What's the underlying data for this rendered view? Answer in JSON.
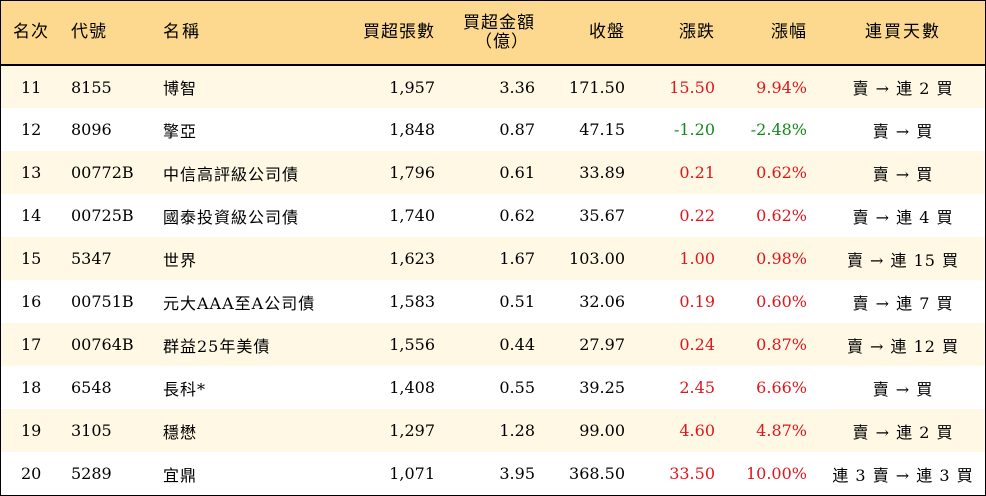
{
  "columns": {
    "rank": "名次",
    "code": "代號",
    "name": "名稱",
    "net_buy_lots": "買超張數",
    "net_buy_amount": "買超金額",
    "net_buy_amount_unit": "（億）",
    "close": "收盤",
    "change": "漲跌",
    "change_pct": "漲幅",
    "consecutive_days": "連買天數"
  },
  "colors": {
    "header_bg": "#fcd98e",
    "odd_row_bg": "#fef8e4",
    "up": "#e0161d",
    "down": "#138a1a"
  },
  "rows": [
    {
      "rank": "11",
      "code": "8155",
      "name": "博智",
      "net_buy_lots": "1,957",
      "net_buy_amount": "3.36",
      "close": "171.50",
      "change": "15.50",
      "change_pct": "9.94%",
      "direction": "up",
      "days": "賣 → 連 2 買"
    },
    {
      "rank": "12",
      "code": "8096",
      "name": "擎亞",
      "net_buy_lots": "1,848",
      "net_buy_amount": "0.87",
      "close": "47.15",
      "change": "-1.20",
      "change_pct": "-2.48%",
      "direction": "down",
      "days": "賣 → 買"
    },
    {
      "rank": "13",
      "code": "00772B",
      "name": "中信高評級公司債",
      "net_buy_lots": "1,796",
      "net_buy_amount": "0.61",
      "close": "33.89",
      "change": "0.21",
      "change_pct": "0.62%",
      "direction": "up",
      "days": "賣 → 買"
    },
    {
      "rank": "14",
      "code": "00725B",
      "name": "國泰投資級公司債",
      "net_buy_lots": "1,740",
      "net_buy_amount": "0.62",
      "close": "35.67",
      "change": "0.22",
      "change_pct": "0.62%",
      "direction": "up",
      "days": "賣 → 連 4 買"
    },
    {
      "rank": "15",
      "code": "5347",
      "name": "世界",
      "net_buy_lots": "1,623",
      "net_buy_amount": "1.67",
      "close": "103.00",
      "change": "1.00",
      "change_pct": "0.98%",
      "direction": "up",
      "days": "賣 → 連 15 買"
    },
    {
      "rank": "16",
      "code": "00751B",
      "name": "元大AAA至A公司債",
      "net_buy_lots": "1,583",
      "net_buy_amount": "0.51",
      "close": "32.06",
      "change": "0.19",
      "change_pct": "0.60%",
      "direction": "up",
      "days": "賣 → 連 7 買"
    },
    {
      "rank": "17",
      "code": "00764B",
      "name": "群益25年美債",
      "net_buy_lots": "1,556",
      "net_buy_amount": "0.44",
      "close": "27.97",
      "change": "0.24",
      "change_pct": "0.87%",
      "direction": "up",
      "days": "賣 → 連 12 買"
    },
    {
      "rank": "18",
      "code": "6548",
      "name": "長科*",
      "net_buy_lots": "1,408",
      "net_buy_amount": "0.55",
      "close": "39.25",
      "change": "2.45",
      "change_pct": "6.66%",
      "direction": "up",
      "days": "賣 → 買"
    },
    {
      "rank": "19",
      "code": "3105",
      "name": "穩懋",
      "net_buy_lots": "1,297",
      "net_buy_amount": "1.28",
      "close": "99.00",
      "change": "4.60",
      "change_pct": "4.87%",
      "direction": "up",
      "days": "賣 → 連 2 買"
    },
    {
      "rank": "20",
      "code": "5289",
      "name": "宜鼎",
      "net_buy_lots": "1,071",
      "net_buy_amount": "3.95",
      "close": "368.50",
      "change": "33.50",
      "change_pct": "10.00%",
      "direction": "up",
      "days": "連 3 賣 → 連 3 買"
    }
  ]
}
